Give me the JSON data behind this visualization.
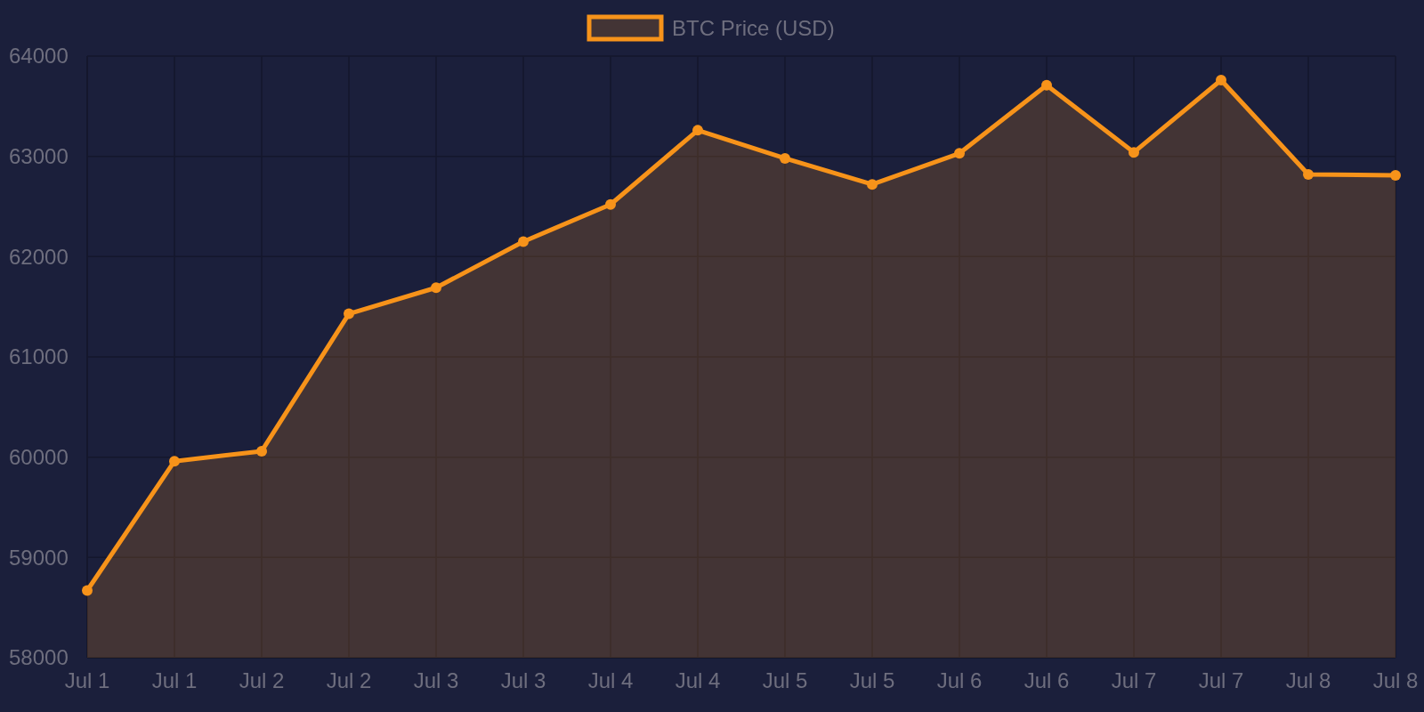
{
  "chart_data": {
    "type": "area",
    "categories": [
      "Jul 1",
      "Jul 1",
      "Jul 2",
      "Jul 2",
      "Jul 3",
      "Jul 3",
      "Jul 4",
      "Jul 4",
      "Jul 5",
      "Jul 5",
      "Jul 6",
      "Jul 6",
      "Jul 7",
      "Jul 7",
      "Jul 8",
      "Jul 8"
    ],
    "series": [
      {
        "name": "BTC Price (USD)",
        "color": "#f7931a",
        "values": [
          58670,
          59960,
          60060,
          61430,
          61690,
          62150,
          62520,
          63260,
          62980,
          62720,
          63030,
          63710,
          63040,
          63760,
          62820,
          62810
        ]
      }
    ],
    "ylim": [
      58000,
      64000
    ],
    "yticks": [
      58000,
      59000,
      60000,
      61000,
      62000,
      63000,
      64000
    ],
    "grid": true,
    "legend": "top",
    "marker": "circle",
    "line_style": "solid"
  }
}
